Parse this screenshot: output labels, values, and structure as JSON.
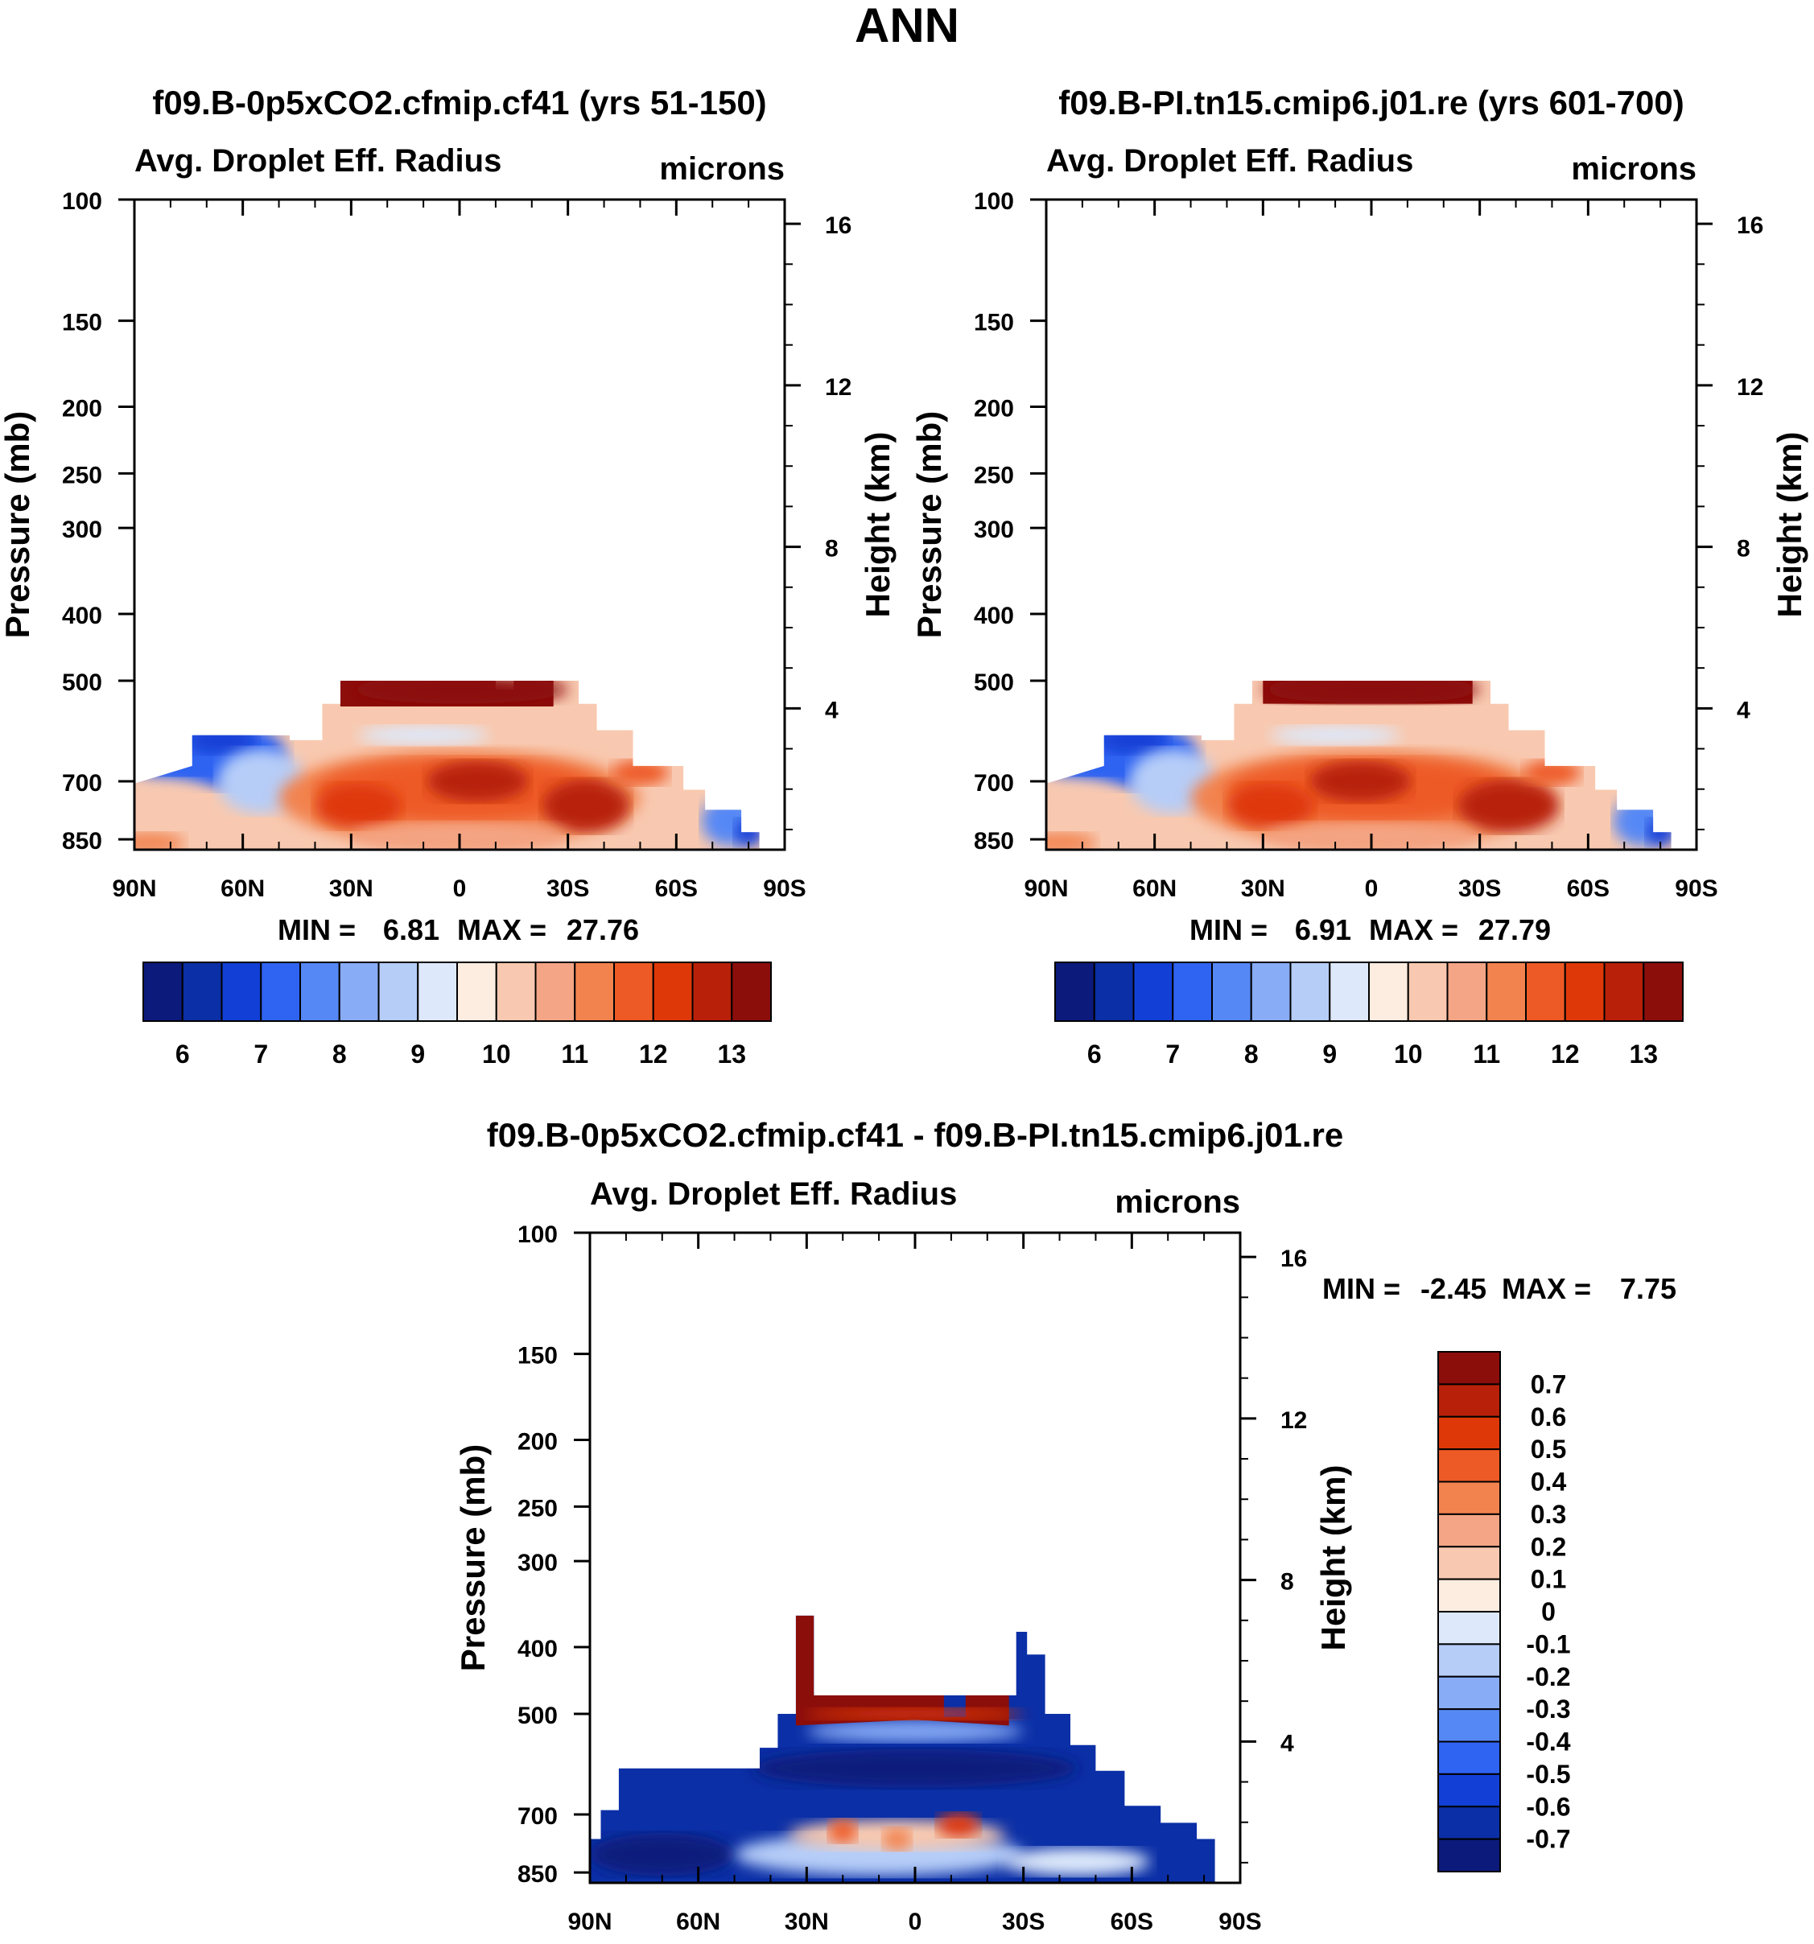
{
  "chart_data": {
    "type": "heatmap",
    "title": "ANN",
    "palette": {
      "blues": [
        "#0c1a7c",
        "#0b2fa6",
        "#1240d6",
        "#2f63f2",
        "#5688f5",
        "#88acf6",
        "#b6cdf8",
        "#dde9fb"
      ],
      "reds": [
        "#fdece0",
        "#f8c9b0",
        "#f4a585",
        "#f2834f",
        "#ee5a25",
        "#df3808",
        "#b82009",
        "#8c0e0b"
      ]
    },
    "panels": [
      {
        "id": "p1",
        "title": "f09.B-0p5xCO2.cfmip.cf41 (yrs 51-150)",
        "left_label": "Avg. Droplet Eff. Radius",
        "right_label": "microns",
        "ylabel": "Pressure (mb)",
        "ylabel2": "Height (km)",
        "pressure_ticks": [
          "100",
          "150",
          "200",
          "250",
          "300",
          "400",
          "500",
          "700",
          "850"
        ],
        "pressure_levels": [
          100,
          150,
          200,
          250,
          300,
          400,
          500,
          700,
          850
        ],
        "height_ticks": [
          "16",
          "12",
          "8",
          "4"
        ],
        "height_levels": [
          16,
          12,
          8,
          4
        ],
        "lat_ticks": [
          "90N",
          "60N",
          "30N",
          "0",
          "30S",
          "60S",
          "90S"
        ],
        "min_label": "MIN =",
        "min_value": "6.81",
        "max_label": "MAX =",
        "max_value": "27.76",
        "field_type": "absolute",
        "colorbar_ticks": [
          "6",
          "7",
          "8",
          "9",
          "10",
          "11",
          "12",
          "13"
        ],
        "colorbar_levels": [
          6,
          6.5,
          7,
          7.5,
          8,
          8.5,
          9,
          9.5,
          10,
          10.5,
          11,
          11.5,
          12,
          12.5,
          13
        ]
      },
      {
        "id": "p2",
        "title": "f09.B-PI.tn15.cmip6.j01.re (yrs 601-700)",
        "left_label": "Avg. Droplet Eff. Radius",
        "right_label": "microns",
        "ylabel": "Pressure (mb)",
        "ylabel2": "Height (km)",
        "pressure_ticks": [
          "100",
          "150",
          "200",
          "250",
          "300",
          "400",
          "500",
          "700",
          "850"
        ],
        "pressure_levels": [
          100,
          150,
          200,
          250,
          300,
          400,
          500,
          700,
          850
        ],
        "height_ticks": [
          "16",
          "12",
          "8",
          "4"
        ],
        "height_levels": [
          16,
          12,
          8,
          4
        ],
        "lat_ticks": [
          "90N",
          "60N",
          "30N",
          "0",
          "30S",
          "60S",
          "90S"
        ],
        "min_label": "MIN =",
        "min_value": "6.91",
        "max_label": "MAX =",
        "max_value": "27.79",
        "field_type": "absolute",
        "colorbar_ticks": [
          "6",
          "7",
          "8",
          "9",
          "10",
          "11",
          "12",
          "13"
        ],
        "colorbar_levels": [
          6,
          6.5,
          7,
          7.5,
          8,
          8.5,
          9,
          9.5,
          10,
          10.5,
          11,
          11.5,
          12,
          12.5,
          13
        ]
      },
      {
        "id": "p3",
        "title": "f09.B-0p5xCO2.cfmip.cf41 - f09.B-PI.tn15.cmip6.j01.re",
        "left_label": "Avg. Droplet Eff. Radius",
        "right_label": "microns",
        "ylabel": "Pressure (mb)",
        "ylabel2": "Height (km)",
        "pressure_ticks": [
          "100",
          "150",
          "200",
          "250",
          "300",
          "400",
          "500",
          "700",
          "850"
        ],
        "pressure_levels": [
          100,
          150,
          200,
          250,
          300,
          400,
          500,
          700,
          850
        ],
        "height_ticks": [
          "16",
          "12",
          "8",
          "4"
        ],
        "height_levels": [
          16,
          12,
          8,
          4
        ],
        "lat_ticks": [
          "90N",
          "60N",
          "30N",
          "0",
          "30S",
          "60S",
          "90S"
        ],
        "min_label": "MIN =",
        "min_value": "-2.45",
        "max_label": "MAX =",
        "max_value": "7.75",
        "field_type": "difference",
        "colorbar_ticks": [
          "0.7",
          "0.6",
          "0.5",
          "0.4",
          "0.3",
          "0.2",
          "0.1",
          "0",
          "-0.1",
          "-0.2",
          "-0.3",
          "-0.4",
          "-0.5",
          "-0.6",
          "-0.7"
        ],
        "colorbar_levels": [
          0.7,
          0.6,
          0.5,
          0.4,
          0.3,
          0.2,
          0.1,
          0,
          -0.1,
          -0.2,
          -0.3,
          -0.4,
          -0.5,
          -0.6,
          -0.7
        ]
      }
    ]
  }
}
